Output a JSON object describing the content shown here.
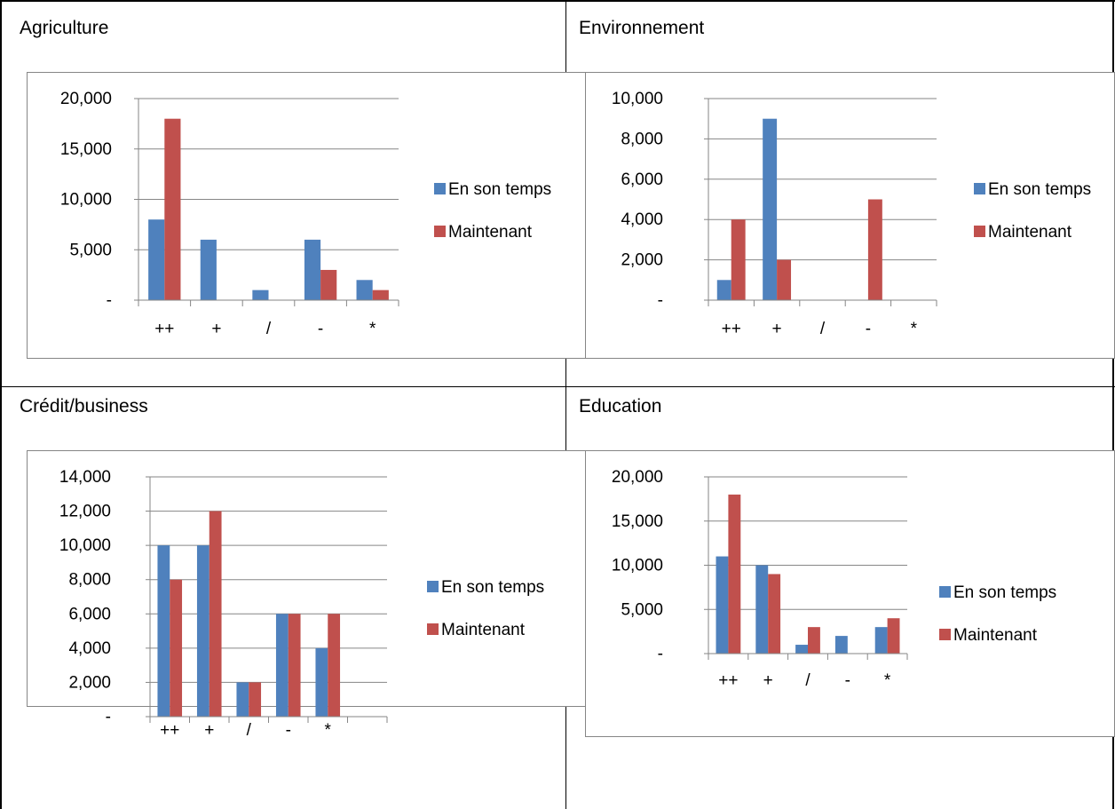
{
  "colors": {
    "series1": "#4f81bd",
    "series2": "#c0504d",
    "gridline": "#868686",
    "border": "#868686"
  },
  "legend": {
    "series1": "En son temps",
    "series2": "Maintenant",
    "placement": "right"
  },
  "panels": {
    "agriculture": {
      "title": "Agriculture"
    },
    "environnement": {
      "title": "Environnement"
    },
    "credit": {
      "title": "Crédit/business"
    },
    "education": {
      "title": "Education"
    }
  },
  "chart_data": [
    {
      "id": "agriculture",
      "type": "bar",
      "title": "Agriculture",
      "categories": [
        "++",
        "+",
        "/",
        "-",
        "*"
      ],
      "ylim": [
        0,
        20000
      ],
      "yticks": [
        "-",
        "5,000",
        "10,000",
        "15,000",
        "20,000"
      ],
      "ytick_values": [
        0,
        5000,
        10000,
        15000,
        20000
      ],
      "grid": true,
      "legend": "right",
      "series": [
        {
          "name": "En son temps",
          "values": [
            8000,
            6000,
            1000,
            6000,
            2000
          ]
        },
        {
          "name": "Maintenant",
          "values": [
            18000,
            0,
            0,
            3000,
            1000
          ]
        }
      ]
    },
    {
      "id": "environnement",
      "type": "bar",
      "title": "Environnement",
      "categories": [
        "++",
        "+",
        "/",
        "-",
        "*"
      ],
      "ylim": [
        0,
        10000
      ],
      "yticks": [
        "-",
        "2,000",
        "4,000",
        "6,000",
        "8,000",
        "10,000"
      ],
      "ytick_values": [
        0,
        2000,
        4000,
        6000,
        8000,
        10000
      ],
      "grid": true,
      "legend": "right",
      "series": [
        {
          "name": "En son temps",
          "values": [
            1000,
            9000,
            0,
            0,
            0
          ]
        },
        {
          "name": "Maintenant",
          "values": [
            4000,
            2000,
            0,
            5000,
            0
          ]
        }
      ]
    },
    {
      "id": "credit",
      "type": "bar",
      "title": "Crédit/business",
      "categories": [
        "++",
        "+",
        "/",
        "-",
        "*",
        ""
      ],
      "ylim": [
        0,
        14000
      ],
      "yticks": [
        "-",
        "2,000",
        "4,000",
        "6,000",
        "8,000",
        "10,000",
        "12,000",
        "14,000"
      ],
      "ytick_values": [
        0,
        2000,
        4000,
        6000,
        8000,
        10000,
        12000,
        14000
      ],
      "grid": true,
      "legend": "right",
      "series": [
        {
          "name": "En son temps",
          "values": [
            10000,
            10000,
            2000,
            6000,
            4000,
            0
          ]
        },
        {
          "name": "Maintenant",
          "values": [
            8000,
            12000,
            2000,
            6000,
            6000,
            0
          ]
        }
      ]
    },
    {
      "id": "education",
      "type": "bar",
      "title": "Education",
      "categories": [
        "++",
        "+",
        "/",
        "-",
        "*"
      ],
      "ylim": [
        0,
        20000
      ],
      "yticks": [
        "-",
        "5,000",
        "10,000",
        "15,000",
        "20,000"
      ],
      "ytick_values": [
        0,
        5000,
        10000,
        15000,
        20000
      ],
      "grid": true,
      "legend": "right",
      "series": [
        {
          "name": "En son temps",
          "values": [
            11000,
            10000,
            1000,
            2000,
            3000
          ]
        },
        {
          "name": "Maintenant",
          "values": [
            18000,
            9000,
            3000,
            0,
            4000
          ]
        }
      ]
    }
  ]
}
